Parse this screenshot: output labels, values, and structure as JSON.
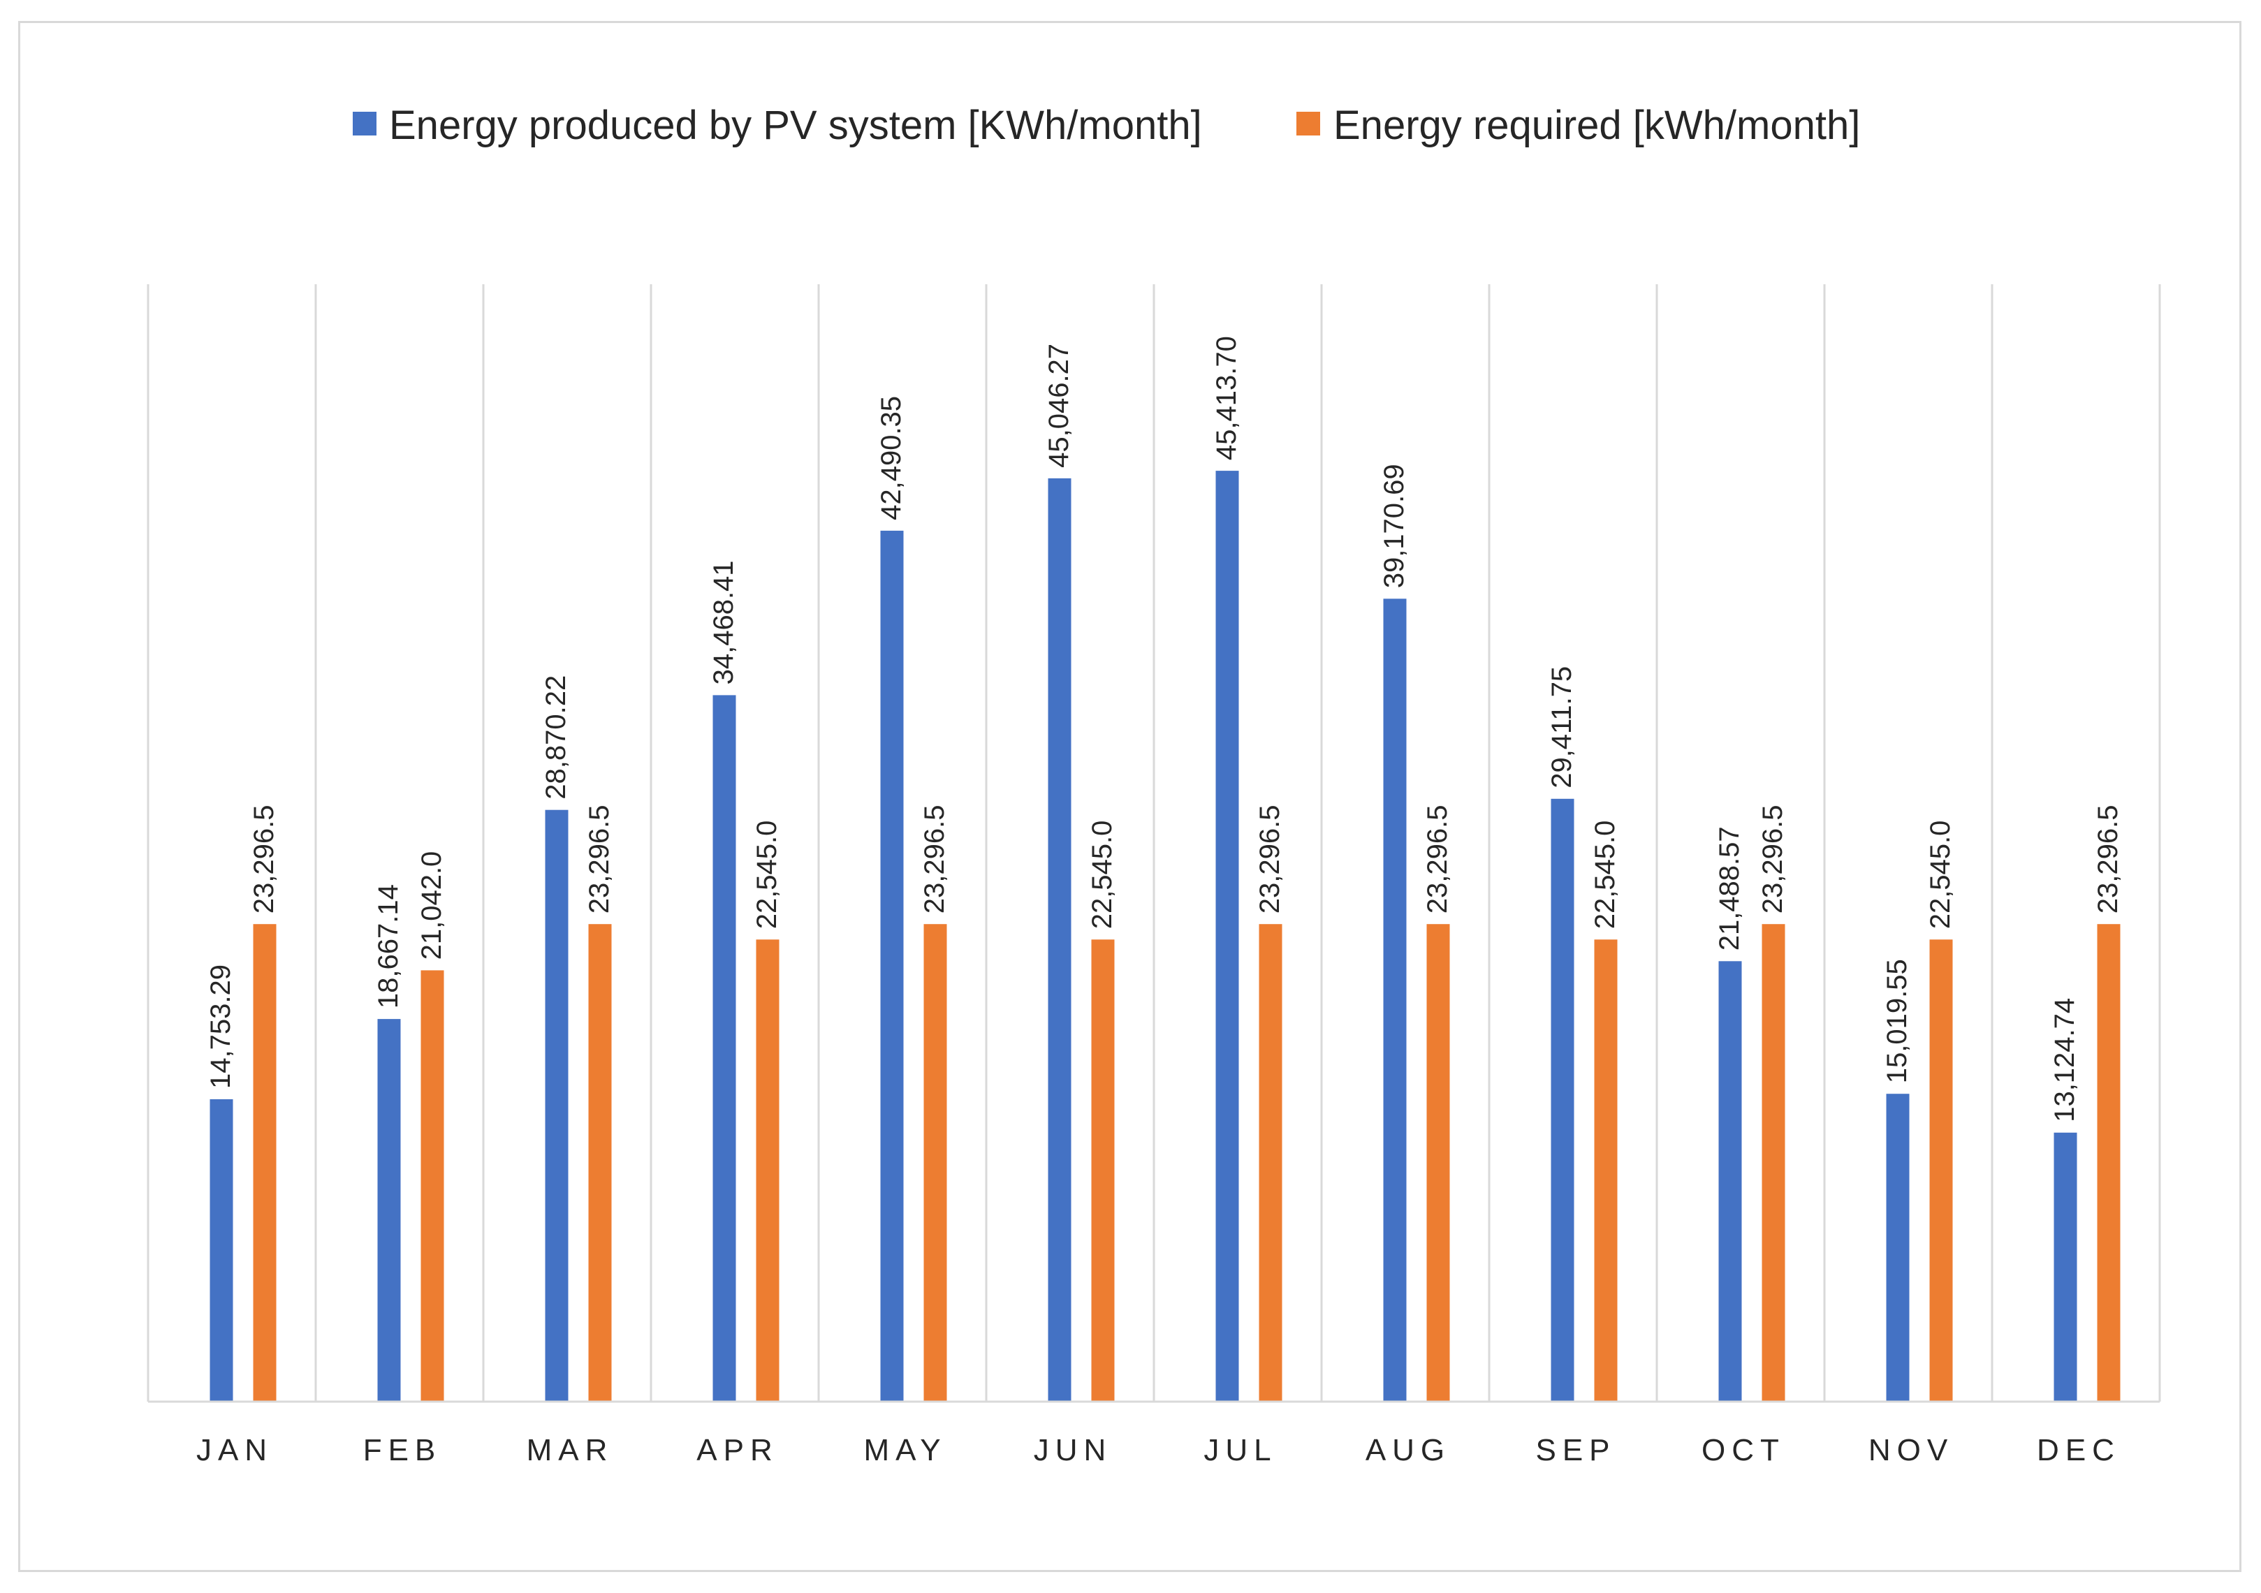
{
  "chart_data": {
    "type": "bar",
    "title": "",
    "xlabel": "",
    "ylabel": "",
    "ylim": [
      0,
      50000
    ],
    "grid": "vertical separators between categories",
    "legend_position": "top",
    "categories": [
      "JAN",
      "FEB",
      "MAR",
      "APR",
      "MAY",
      "JUN",
      "JUL",
      "AUG",
      "SEP",
      "OCT",
      "NOV",
      "DEC"
    ],
    "series": [
      {
        "name": "Energy produced by PV system [KWh/month]",
        "color": "#4472c4",
        "values": [
          14753.29,
          18667.14,
          28870.22,
          34468.41,
          42490.35,
          45046.27,
          45413.7,
          39170.69,
          29411.75,
          21488.57,
          15019.55,
          13124.74
        ],
        "labels": [
          "14,753.29",
          "18,667.14",
          "28,870.22",
          "34,468.41",
          "42,490.35",
          "45,046.27",
          "45,413.70",
          "39,170.69",
          "29,411.75",
          "21,488.57",
          "15,019.55",
          "13,124.74"
        ]
      },
      {
        "name": "Energy required [kWh/month]",
        "color": "#ed7d31",
        "values": [
          23296.5,
          21042.0,
          23296.5,
          22545.0,
          23296.5,
          22545.0,
          23296.5,
          23296.5,
          22545.0,
          23296.5,
          22545.0,
          23296.5
        ],
        "labels": [
          "23,296.5",
          "21,042.0",
          "23,296.5",
          "22,545.0",
          "23,296.5",
          "22,545.0",
          "23,296.5",
          "23,296.5",
          "22,545.0",
          "23,296.5",
          "22,545.0",
          "23,296.5"
        ]
      }
    ]
  }
}
